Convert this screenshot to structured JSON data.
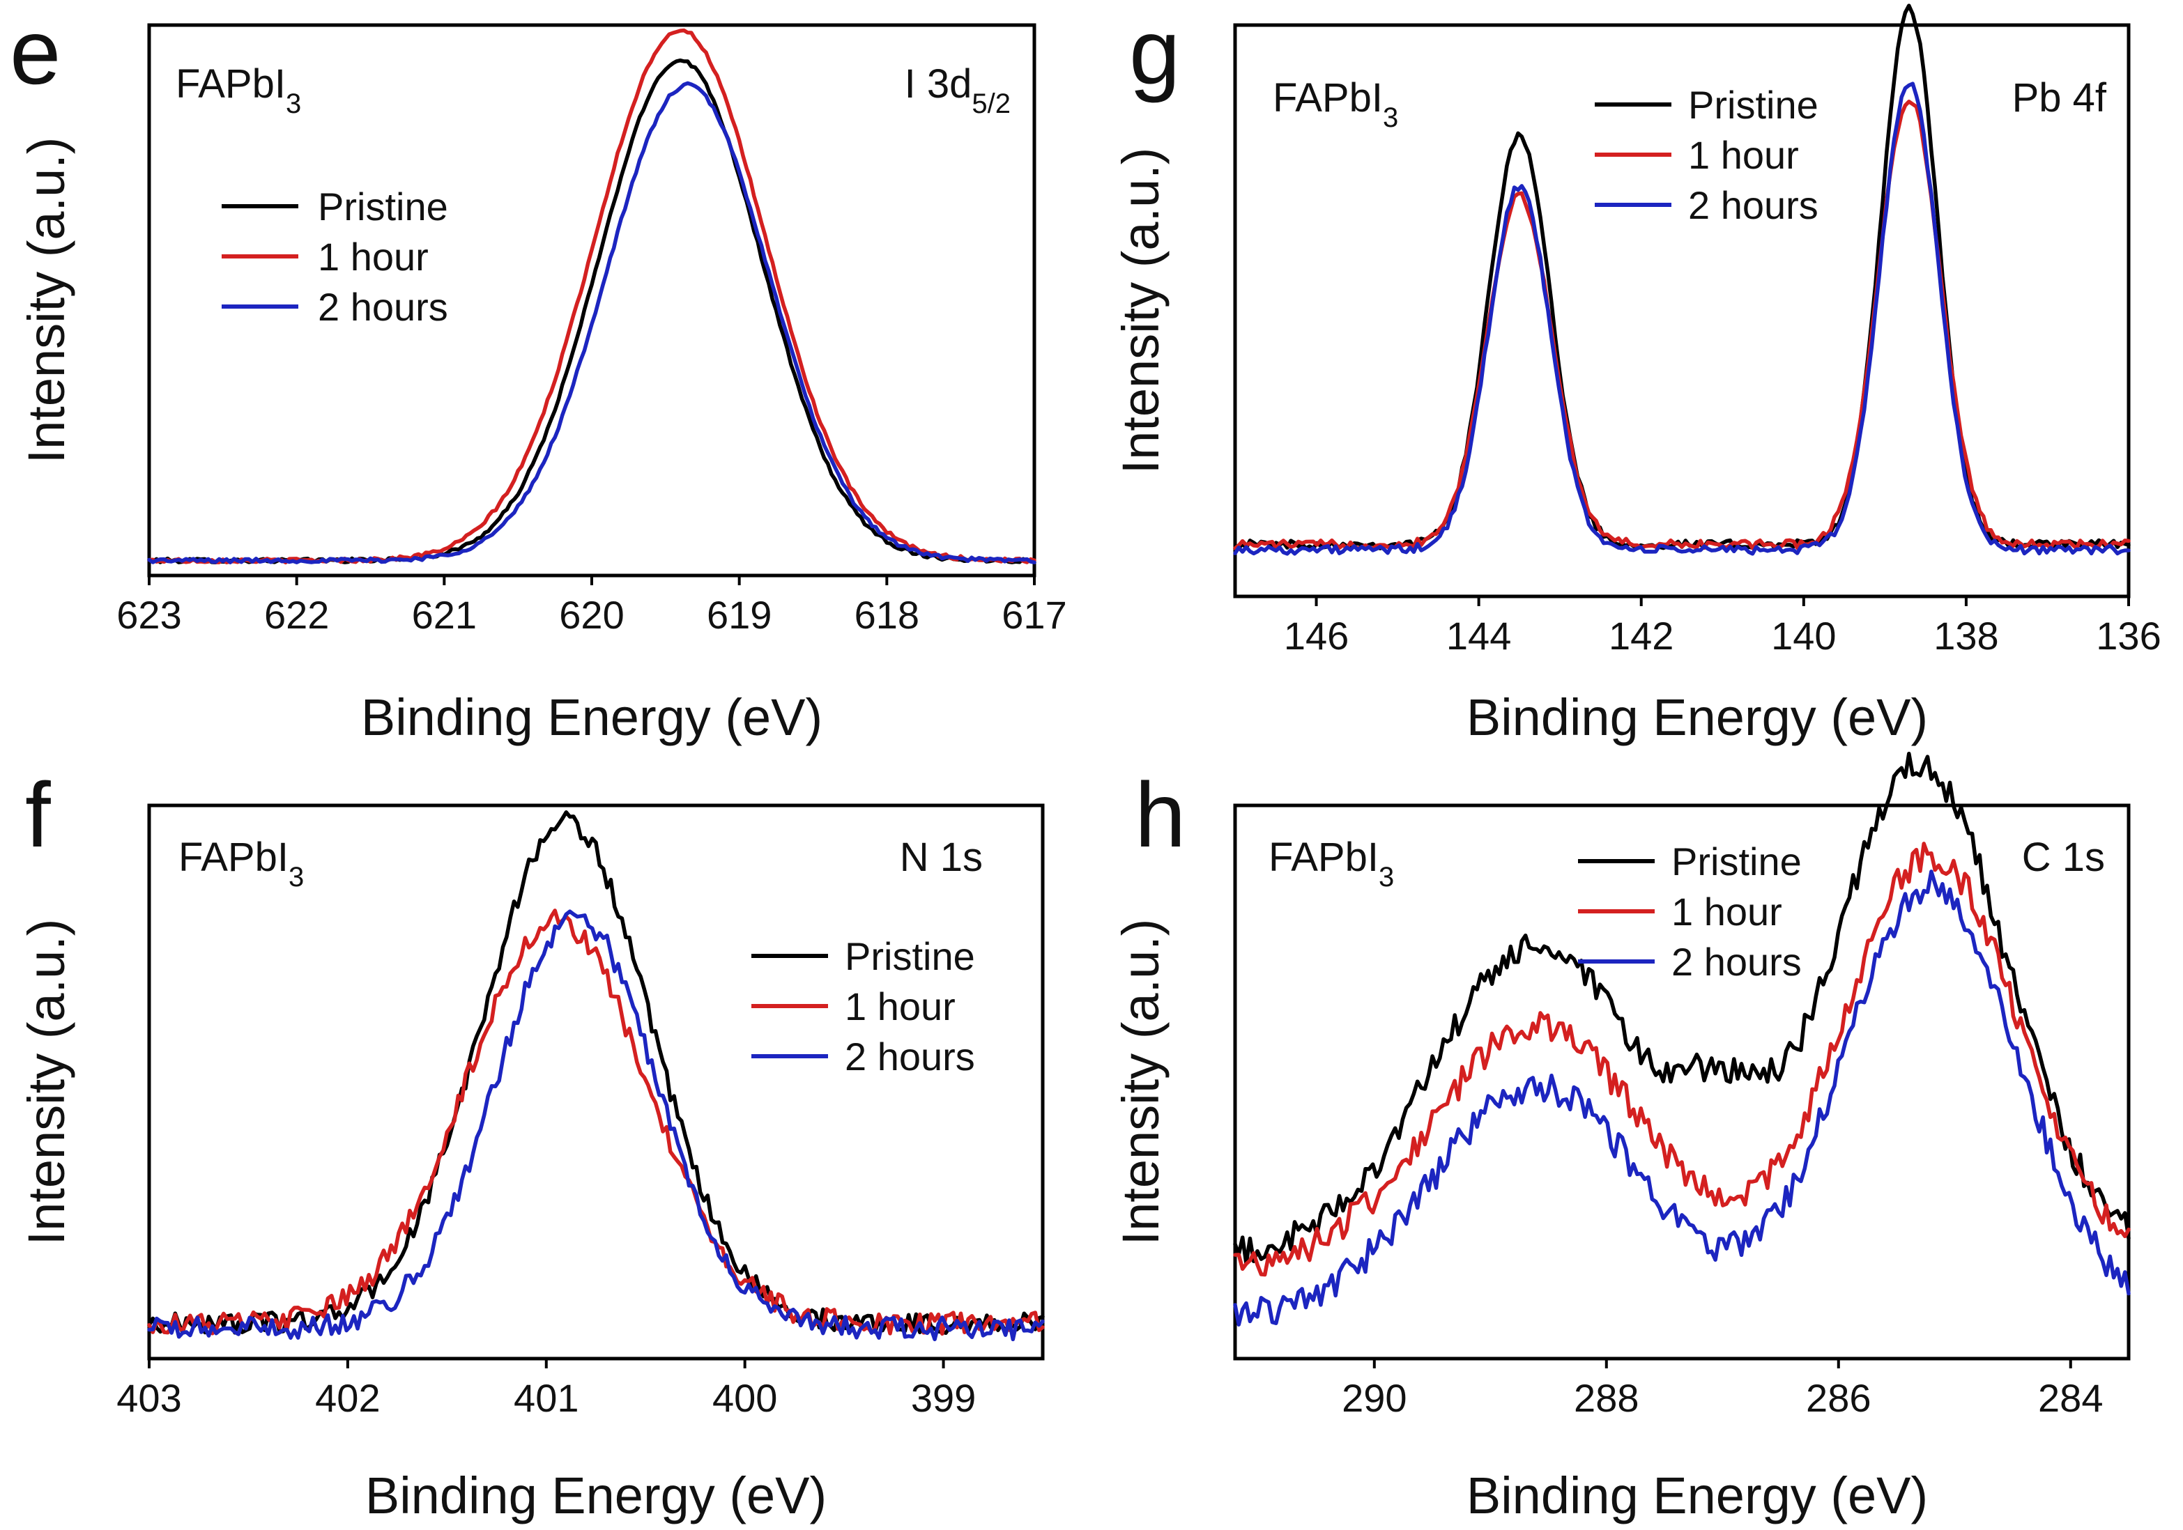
{
  "colors": {
    "pristine": "#000000",
    "one_hour": "#d42020",
    "two_hours": "#1c25c0"
  },
  "chart_data": [
    {
      "panel": "e",
      "type": "line",
      "sample": "FAPbI",
      "sample_sub": "3",
      "core": "I 3d",
      "core_sub": "5/2",
      "xlabel": "Binding Energy (eV)",
      "ylabel": "Intensity (a.u.)",
      "xlim": [
        623,
        617
      ],
      "xticks": [
        "623",
        "622",
        "621",
        "620",
        "619",
        "618",
        "617"
      ],
      "ylim": [
        0,
        1.1
      ],
      "legend_position": "upper-left",
      "series": [
        {
          "name": "Pristine",
          "color_key": "pristine",
          "peaks": [
            {
              "center": 619.4,
              "height": 1.0,
              "width": 0.55
            }
          ],
          "baseline": 0.03,
          "noise": 0.004
        },
        {
          "name": "1 hour",
          "color_key": "one_hour",
          "peaks": [
            {
              "center": 619.4,
              "height": 1.06,
              "width": 0.58
            }
          ],
          "baseline": 0.03,
          "noise": 0.004
        },
        {
          "name": "2 hours",
          "color_key": "two_hours",
          "peaks": [
            {
              "center": 619.35,
              "height": 0.95,
              "width": 0.55
            }
          ],
          "baseline": 0.03,
          "noise": 0.004
        }
      ]
    },
    {
      "panel": "g",
      "type": "line",
      "sample": "FAPbI",
      "sample_sub": "3",
      "core": "Pb 4f",
      "core_sub": "",
      "xlabel": "Binding Energy (eV)",
      "ylabel": "Intensity (a.u.)",
      "xlim": [
        147,
        136
      ],
      "xticks": [
        "146",
        "144",
        "142",
        "140",
        "138",
        "136"
      ],
      "ylim": [
        0,
        1.1
      ],
      "legend_position": "top-center",
      "series": [
        {
          "name": "Pristine",
          "color_key": "pristine",
          "peaks": [
            {
              "center": 143.5,
              "height": 0.79,
              "width": 0.38
            },
            {
              "center": 138.7,
              "height": 1.03,
              "width": 0.35
            }
          ],
          "baseline": 0.1,
          "noise": 0.008
        },
        {
          "name": "1 hour",
          "color_key": "one_hour",
          "peaks": [
            {
              "center": 143.5,
              "height": 0.67,
              "width": 0.4
            },
            {
              "center": 138.7,
              "height": 0.86,
              "width": 0.38
            }
          ],
          "baseline": 0.1,
          "noise": 0.008
        },
        {
          "name": "2 hours",
          "color_key": "two_hours",
          "peaks": [
            {
              "center": 143.5,
              "height": 0.7,
              "width": 0.38
            },
            {
              "center": 138.7,
              "height": 0.9,
              "width": 0.36
            }
          ],
          "baseline": 0.09,
          "noise": 0.008
        }
      ]
    },
    {
      "panel": "f",
      "type": "line",
      "sample": "FAPbI",
      "sample_sub": "3",
      "core": "N 1s",
      "core_sub": "",
      "xlabel": "Binding Energy (eV)",
      "ylabel": "Intensity (a.u.)",
      "xlim": [
        403,
        398.5
      ],
      "xticks": [
        "403",
        "402",
        "401",
        "400",
        "399"
      ],
      "ylim": [
        0,
        1.1
      ],
      "legend_position": "middle-right",
      "series": [
        {
          "name": "Pristine",
          "color_key": "pristine",
          "peaks": [
            {
              "center": 400.9,
              "height": 1.0,
              "width": 0.42
            }
          ],
          "baseline": 0.07,
          "noise": 0.02
        },
        {
          "name": "1 hour",
          "color_key": "one_hour",
          "peaks": [
            {
              "center": 400.95,
              "height": 0.8,
              "width": 0.45
            }
          ],
          "baseline": 0.07,
          "noise": 0.022
        },
        {
          "name": "2 hours",
          "color_key": "two_hours",
          "peaks": [
            {
              "center": 400.85,
              "height": 0.82,
              "width": 0.4
            }
          ],
          "baseline": 0.06,
          "noise": 0.022
        }
      ]
    },
    {
      "panel": "h",
      "type": "line",
      "sample": "FAPbI",
      "sample_sub": "3",
      "core": "C 1s",
      "core_sub": "",
      "xlabel": "Binding Energy (eV)",
      "ylabel": "Intensity (a.u.)",
      "xlim": [
        291.2,
        283.5
      ],
      "xticks": [
        "290",
        "288",
        "286",
        "284"
      ],
      "ylim": [
        0,
        1.1
      ],
      "legend_position": "top-center",
      "series": [
        {
          "name": "Pristine",
          "color_key": "pristine",
          "peaks": [
            {
              "center": 288.6,
              "height": 0.62,
              "width": 0.9
            },
            {
              "center": 285.3,
              "height": 0.98,
              "width": 0.75
            },
            {
              "center": 287.0,
              "height": 0.18,
              "width": 0.35
            }
          ],
          "baseline": 0.2,
          "noise": 0.03
        },
        {
          "name": "1 hour",
          "color_key": "one_hour",
          "peaks": [
            {
              "center": 288.6,
              "height": 0.48,
              "width": 0.9
            },
            {
              "center": 285.2,
              "height": 0.82,
              "width": 0.75
            }
          ],
          "baseline": 0.18,
          "noise": 0.03
        },
        {
          "name": "2 hours",
          "color_key": "two_hours",
          "peaks": [
            {
              "center": 288.6,
              "height": 0.46,
              "width": 0.9
            },
            {
              "center": 285.2,
              "height": 0.86,
              "width": 0.75
            }
          ],
          "baseline": 0.08,
          "noise": 0.03
        }
      ]
    }
  ]
}
